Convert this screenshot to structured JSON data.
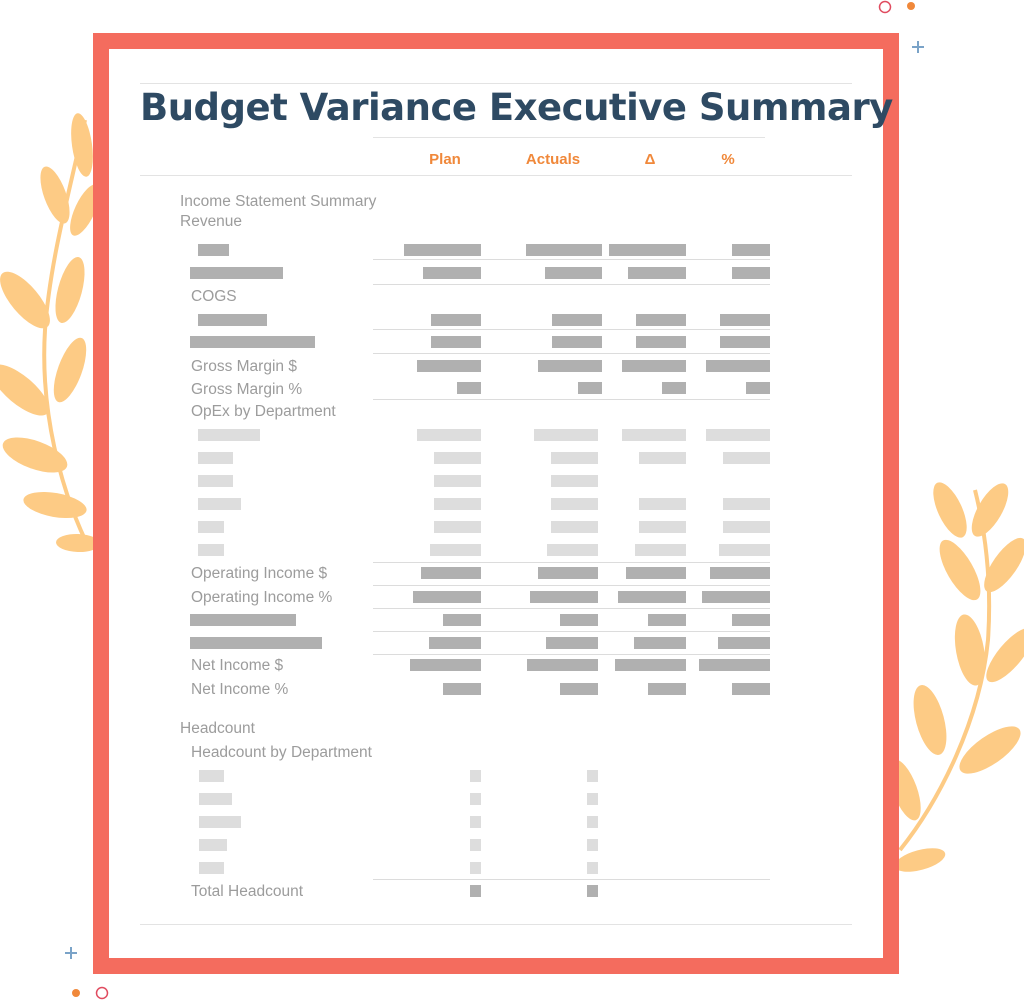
{
  "title": "Budget Variance Executive Summary",
  "columns": {
    "plan": "Plan",
    "actuals": "Actuals",
    "delta": "Δ",
    "percent": "%"
  },
  "sections": {
    "income_statement": "Income Statement Summary",
    "revenue": "Revenue",
    "cogs": "COGS",
    "gross_margin_dollar": "Gross Margin $",
    "gross_margin_pct": "Gross Margin %",
    "opex": "OpEx by Department",
    "operating_income_dollar": "Operating Income $",
    "operating_income_pct": "Operating Income %",
    "net_income_dollar": "Net Income $",
    "net_income_pct": "Net Income %",
    "headcount": "Headcount",
    "headcount_by_dept": "Headcount by Department",
    "total_headcount": "Total Headcount"
  },
  "colors": {
    "frame": "#f46c5e",
    "title": "#2e4a63",
    "column_header": "#f0883a",
    "leaf": "#fdcb85",
    "placeholder_dark": "#b0b0b0",
    "placeholder_light": "#dddddd"
  }
}
